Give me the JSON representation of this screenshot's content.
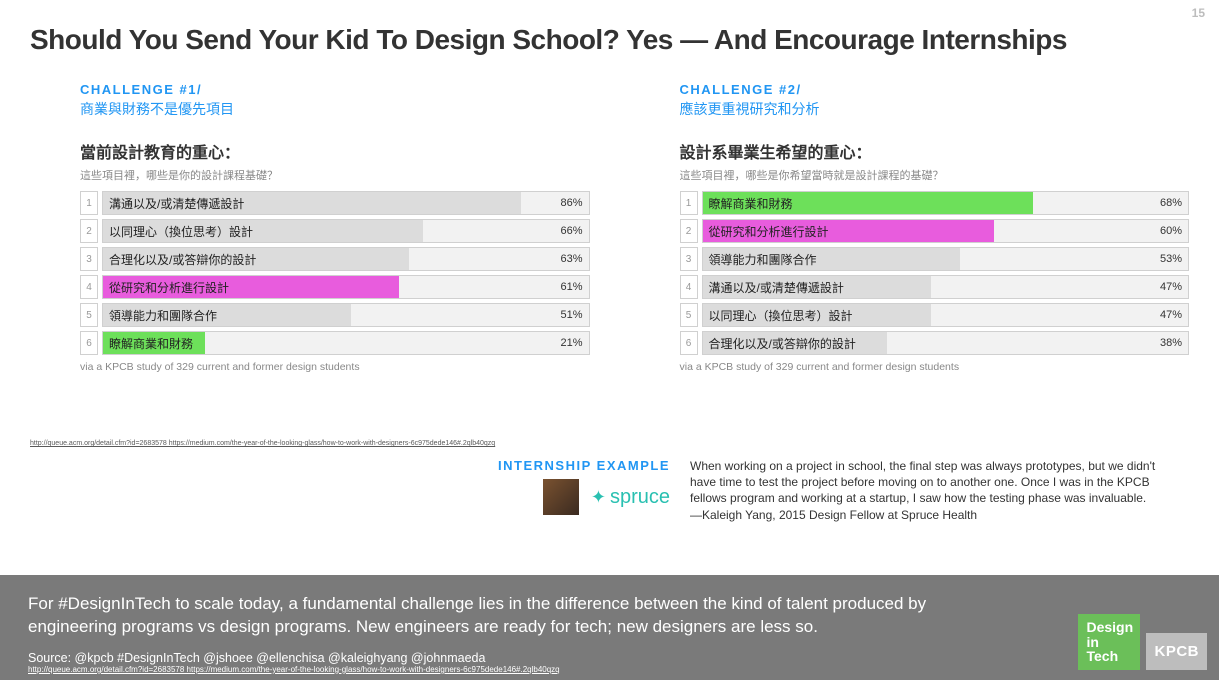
{
  "page_number": "15",
  "title": "Should You Send Your Kid To Design School? Yes — And Encourage Internships",
  "colors": {
    "accent_blue": "#2196f3",
    "bar_default": "#dcdcdc",
    "bar_magenta": "#e85cdd",
    "bar_green": "#6de05a",
    "footer_bg": "#7a7a7a",
    "badge_green": "#6bbf59",
    "badge_gray": "#bdbdbd",
    "spruce": "#29c0b1"
  },
  "challenges": [
    {
      "label": "CHALLENGE #1/",
      "subtitle": "商業與財務不是優先項目",
      "section_title": "當前設計教育的重心：",
      "question": "這些項目裡，哪些是你的設計課程基礎？",
      "bars": [
        {
          "rank": "1",
          "label": "溝通以及/或清楚傳遞設計",
          "pct": 86,
          "pct_text": "86%",
          "color": "#dcdcdc"
        },
        {
          "rank": "2",
          "label": "以同理心（換位思考）設計",
          "pct": 66,
          "pct_text": "66%",
          "color": "#dcdcdc"
        },
        {
          "rank": "3",
          "label": "合理化以及/或答辯你的設計",
          "pct": 63,
          "pct_text": "63%",
          "color": "#dcdcdc"
        },
        {
          "rank": "4",
          "label": "從研究和分析進行設計",
          "pct": 61,
          "pct_text": "61%",
          "color": "#e85cdd"
        },
        {
          "rank": "5",
          "label": "領導能力和團隊合作",
          "pct": 51,
          "pct_text": "51%",
          "color": "#dcdcdc"
        },
        {
          "rank": "6",
          "label": "瞭解商業和財務",
          "pct": 21,
          "pct_text": "21%",
          "color": "#6de05a"
        }
      ],
      "source": "via a KPCB study of 329 current and former design students"
    },
    {
      "label": "CHALLENGE #2/",
      "subtitle": "應該更重視研究和分析",
      "section_title": "設計系畢業生希望的重心：",
      "question": "這些項目裡，哪些是你希望當時就是設計課程的基礎？",
      "bars": [
        {
          "rank": "1",
          "label": "瞭解商業和財務",
          "pct": 68,
          "pct_text": "68%",
          "color": "#6de05a"
        },
        {
          "rank": "2",
          "label": "從研究和分析進行設計",
          "pct": 60,
          "pct_text": "60%",
          "color": "#e85cdd"
        },
        {
          "rank": "3",
          "label": "領導能力和團隊合作",
          "pct": 53,
          "pct_text": "53%",
          "color": "#dcdcdc"
        },
        {
          "rank": "4",
          "label": "溝通以及/或清楚傳遞設計",
          "pct": 47,
          "pct_text": "47%",
          "color": "#dcdcdc"
        },
        {
          "rank": "5",
          "label": "以同理心（換位思考）設計",
          "pct": 47,
          "pct_text": "47%",
          "color": "#dcdcdc"
        },
        {
          "rank": "6",
          "label": "合理化以及/或答辯你的設計",
          "pct": 38,
          "pct_text": "38%",
          "color": "#dcdcdc"
        }
      ],
      "source": "via a KPCB study of 329 current and former design students"
    }
  ],
  "tiny_links": "http://queue.acm.org/detail.cfm?id=2683578 https://medium.com/the-year-of-the-looking-glass/how-to-work-with-designers-6c975dede146#.2qlb40qzq",
  "internship": {
    "label": "INTERNSHIP EXAMPLE",
    "brand": "spruce",
    "quote": "When working on a project in school, the final step was always prototypes, but we didn't have time to test the project before moving on to another one. Once I was in the KPCB fellows program and working at a startup, I saw how the testing phase was invaluable.",
    "attribution": "—Kaleigh Yang, 2015 Design Fellow at Spruce Health"
  },
  "footer": {
    "main": "For #DesignInTech to scale today, a fundamental challenge lies in the difference between the kind of talent produced by engineering programs vs design programs. New engineers are ready for tech; new designers are less so.",
    "source": "Source: @kpcb #DesignInTech @jshoee @ellenchisa @kaleighyang @johnmaeda",
    "link": "http://queue.acm.org/detail.cfm?id=2683578 https://medium.com/the-year-of-the-looking-glass/how-to-work-with-designers-6c975dede146#.2qlb40qzq",
    "badge_dit": "Design\nin Tech",
    "badge_kpcb": "KPCB"
  }
}
